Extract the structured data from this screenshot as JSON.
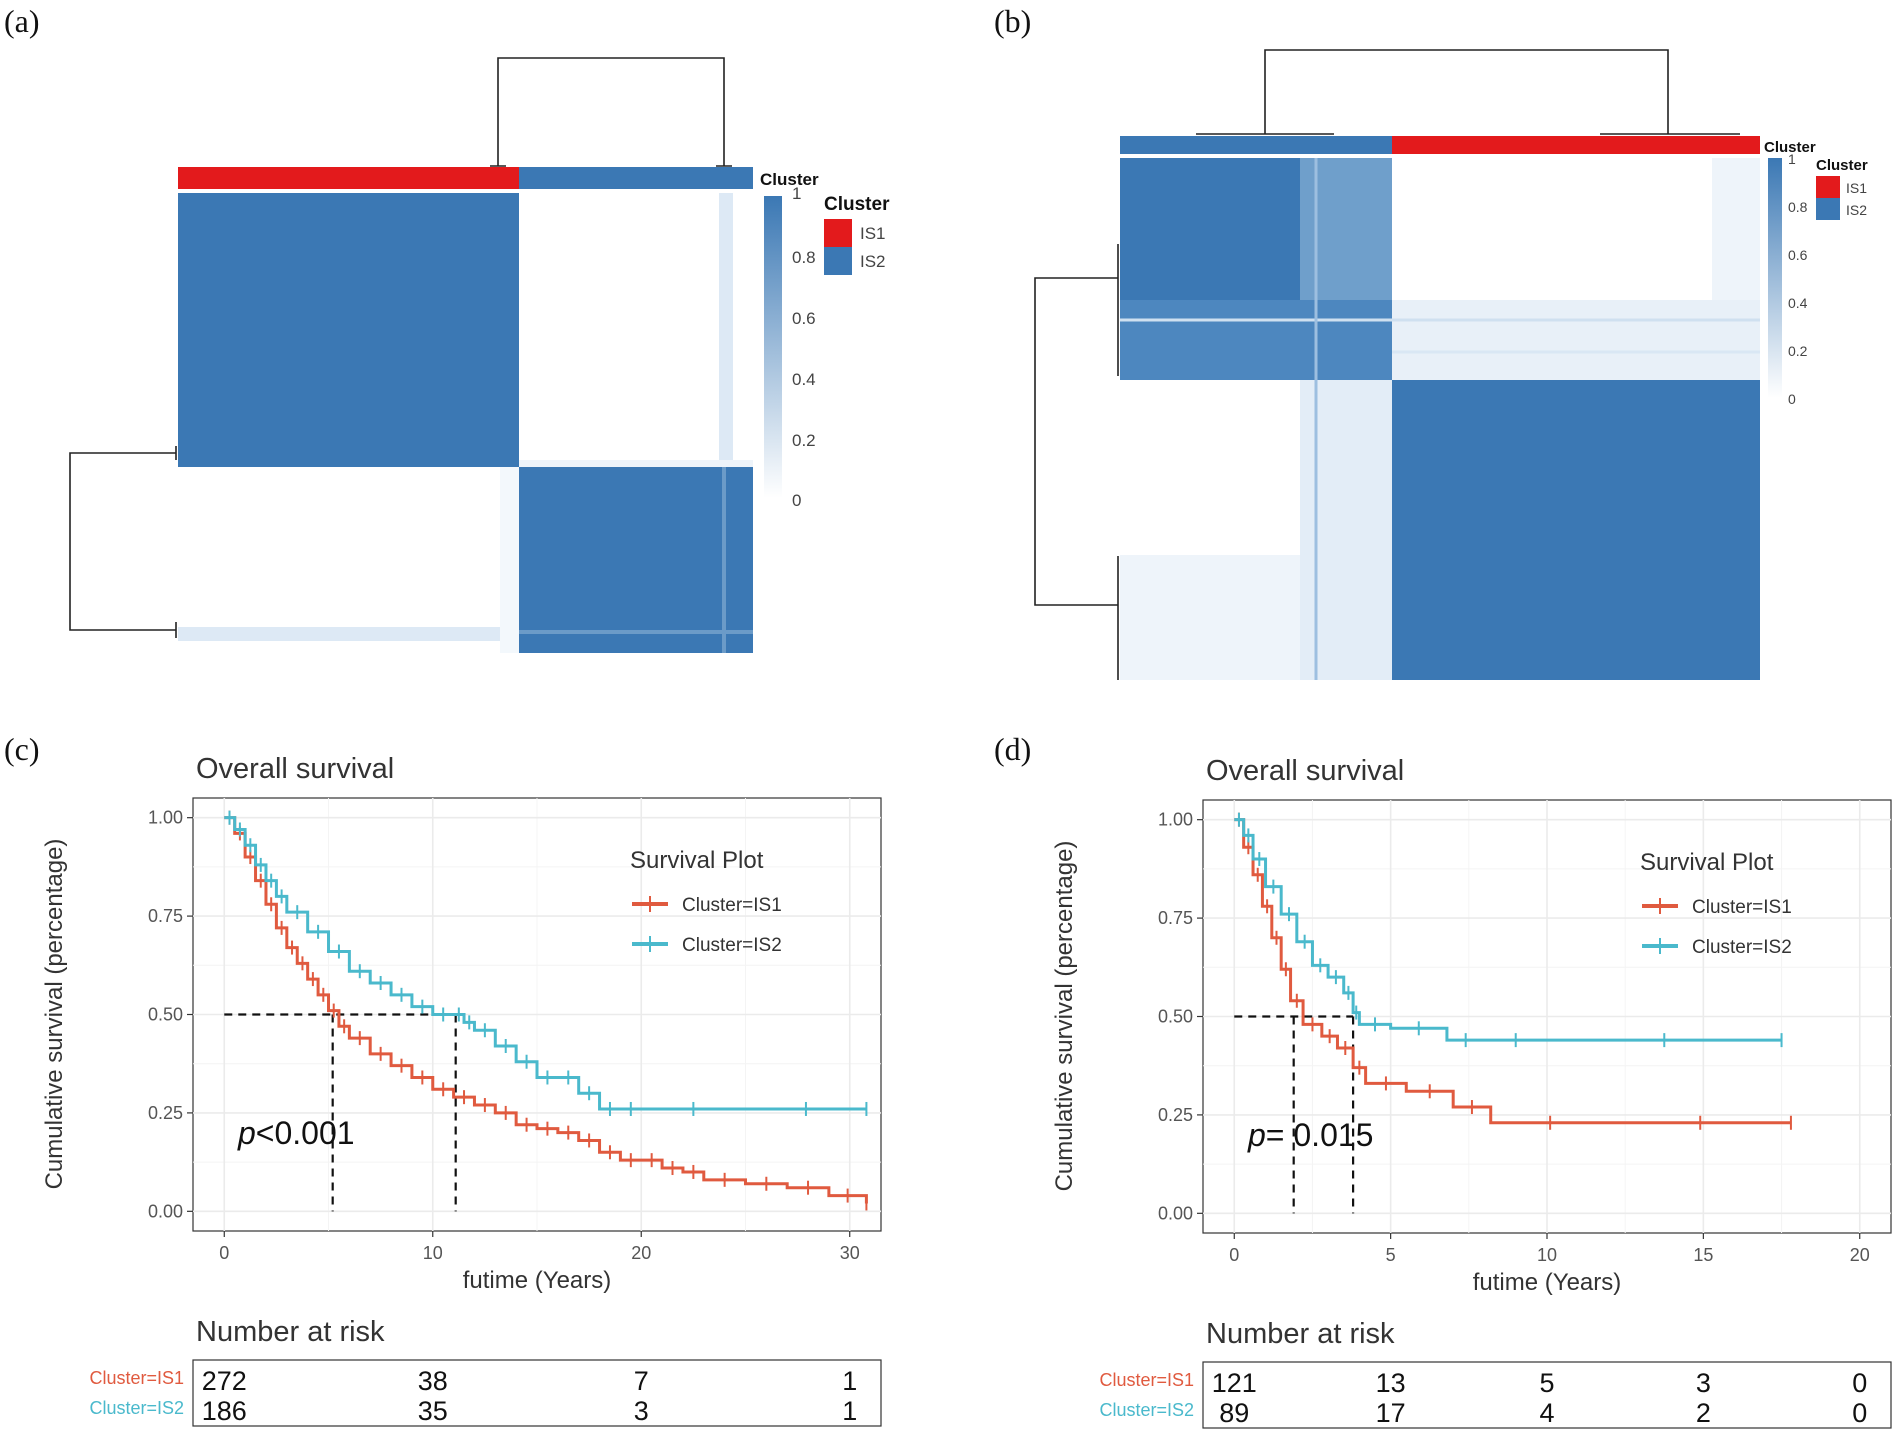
{
  "panels": {
    "a": {
      "label": "(a)"
    },
    "b": {
      "label": "(b)"
    },
    "c": {
      "label": "(c)"
    },
    "d": {
      "label": "(d)"
    }
  },
  "colors": {
    "is1_heat": "#e31a1c",
    "is2_heat": "#3b78b4",
    "is1_km": "#e05a3f",
    "is2_km": "#4ab9cc",
    "grid": "#ebebeb",
    "frame": "#333333"
  },
  "heatmap_legend": {
    "annotation_title": "Cluster",
    "legend_title": "Cluster",
    "items": [
      "IS1",
      "IS2"
    ],
    "scale_ticks": [
      "1",
      "0.8",
      "0.6",
      "0.4",
      "0.2",
      "0"
    ]
  },
  "chart_data": [
    {
      "panel": "a",
      "type": "heatmap",
      "title": "",
      "column_annotation": "Cluster",
      "cluster_order": [
        "IS1",
        "IS2"
      ],
      "cluster_sizes": [
        272,
        186
      ],
      "value_range": [
        0,
        1
      ],
      "colorbar_ticks": [
        1,
        0.8,
        0.6,
        0.4,
        0.2,
        0
      ],
      "legend": [
        "IS1",
        "IS2"
      ]
    },
    {
      "panel": "b",
      "type": "heatmap",
      "title": "",
      "column_annotation": "Cluster",
      "cluster_order": [
        "IS2",
        "IS1"
      ],
      "cluster_sizes": [
        89,
        121
      ],
      "value_range": [
        0,
        1
      ],
      "colorbar_ticks": [
        1,
        0.8,
        0.6,
        0.4,
        0.2,
        0
      ],
      "legend": [
        "IS1",
        "IS2"
      ]
    },
    {
      "panel": "c",
      "type": "line",
      "title": "Overall survival",
      "xlabel": "futime (Years)",
      "ylabel": "Cumulative survival (percentage)",
      "xlim": [
        -1.5,
        31.5
      ],
      "ylim": [
        -0.05,
        1.05
      ],
      "xticks": [
        0,
        10,
        20,
        30
      ],
      "yticks": [
        "0.00",
        "0.25",
        "0.50",
        "0.75",
        "1.00"
      ],
      "legend_title": "Survival Plot",
      "pvalue_label": "p",
      "pvalue_text": "<0.001",
      "median_survival": {
        "IS1": 5.2,
        "IS2": 11.1
      },
      "series": [
        {
          "name": "Cluster=IS1",
          "color": "#e05a3f",
          "x": [
            0,
            0.5,
            1,
            1.5,
            2,
            2.5,
            3,
            3.5,
            4,
            4.5,
            5,
            5.5,
            6,
            7,
            8,
            9,
            10,
            11,
            12,
            13,
            14,
            15,
            16,
            17,
            18,
            19,
            20,
            21,
            22,
            23,
            25,
            27,
            29,
            30.8
          ],
          "y": [
            1.0,
            0.96,
            0.9,
            0.84,
            0.78,
            0.72,
            0.67,
            0.63,
            0.59,
            0.55,
            0.51,
            0.47,
            0.44,
            0.4,
            0.37,
            0.34,
            0.31,
            0.29,
            0.27,
            0.25,
            0.22,
            0.21,
            0.2,
            0.18,
            0.15,
            0.13,
            0.13,
            0.11,
            0.1,
            0.08,
            0.07,
            0.06,
            0.04,
            0.02
          ]
        },
        {
          "name": "Cluster=IS2",
          "color": "#4ab9cc",
          "x": [
            0,
            0.5,
            1,
            1.5,
            2,
            2.5,
            3,
            4,
            5,
            6,
            7,
            8,
            9,
            10,
            11,
            11.5,
            12,
            13,
            14,
            15,
            16,
            17,
            18,
            19,
            20,
            25,
            30.8
          ],
          "y": [
            1.0,
            0.97,
            0.93,
            0.88,
            0.84,
            0.8,
            0.76,
            0.71,
            0.66,
            0.61,
            0.58,
            0.55,
            0.52,
            0.5,
            0.5,
            0.48,
            0.46,
            0.42,
            0.38,
            0.34,
            0.34,
            0.3,
            0.26,
            0.26,
            0.26,
            0.26,
            0.26
          ]
        }
      ],
      "risk_table": {
        "title": "Number at risk",
        "rows": [
          {
            "name": "Cluster=IS1",
            "values": [
              272,
              38,
              7,
              1
            ]
          },
          {
            "name": "Cluster=IS2",
            "values": [
              186,
              35,
              3,
              1
            ]
          }
        ],
        "x": [
          0,
          10,
          20,
          30
        ]
      }
    },
    {
      "panel": "d",
      "type": "line",
      "title": "Overall survival",
      "xlabel": "futime (Years)",
      "ylabel": "Cumulative survival (percentage)",
      "xlim": [
        -1,
        21
      ],
      "ylim": [
        -0.05,
        1.05
      ],
      "xticks": [
        0,
        5,
        10,
        15,
        20
      ],
      "yticks": [
        "0.00",
        "0.25",
        "0.50",
        "0.75",
        "1.00"
      ],
      "legend_title": "Survival Plot",
      "pvalue_label": "p",
      "pvalue_text": "= 0.015",
      "median_survival": {
        "IS1": 1.9,
        "IS2": 3.8
      },
      "series": [
        {
          "name": "Cluster=IS1",
          "color": "#e05a3f",
          "x": [
            0,
            0.3,
            0.6,
            0.9,
            1.2,
            1.5,
            1.8,
            2.2,
            2.8,
            3.3,
            3.8,
            4.2,
            5.5,
            7,
            8.2,
            12,
            17.8
          ],
          "y": [
            1.0,
            0.93,
            0.86,
            0.78,
            0.7,
            0.62,
            0.54,
            0.48,
            0.45,
            0.42,
            0.37,
            0.33,
            0.31,
            0.27,
            0.23,
            0.23,
            0.23
          ]
        },
        {
          "name": "Cluster=IS2",
          "color": "#4ab9cc",
          "x": [
            0,
            0.3,
            0.6,
            1,
            1.5,
            2,
            2.5,
            3,
            3.5,
            3.8,
            4,
            5,
            6.8,
            8,
            10,
            17.5
          ],
          "y": [
            1.0,
            0.96,
            0.9,
            0.83,
            0.76,
            0.69,
            0.63,
            0.6,
            0.56,
            0.51,
            0.48,
            0.47,
            0.44,
            0.44,
            0.44,
            0.44
          ]
        }
      ],
      "risk_table": {
        "title": "Number at risk",
        "rows": [
          {
            "name": "Cluster=IS1",
            "values": [
              121,
              13,
              5,
              3,
              0
            ]
          },
          {
            "name": "Cluster=IS2",
            "values": [
              89,
              17,
              4,
              2,
              0
            ]
          }
        ],
        "x": [
          0,
          5,
          10,
          15,
          20
        ]
      }
    }
  ]
}
